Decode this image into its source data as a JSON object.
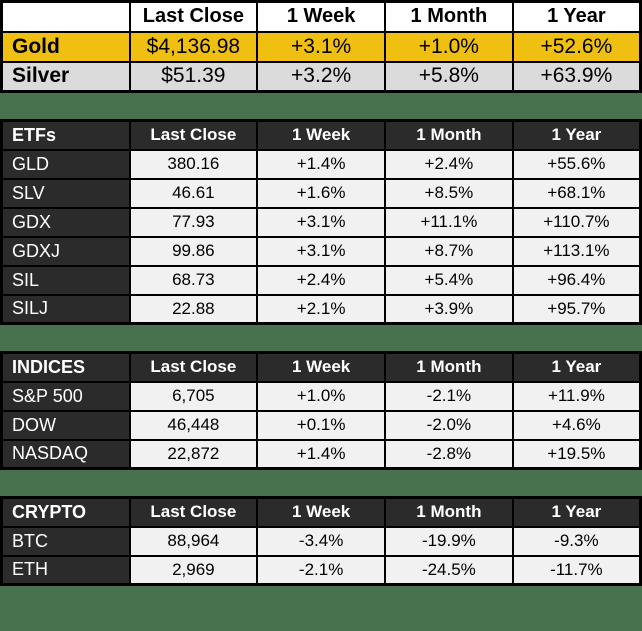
{
  "colors": {
    "page_bg": "#48714E",
    "dark": "#2B2B2B",
    "cell_bg": "#F1F1F1",
    "gold": "#EFBF12",
    "silver": "#DBDBDB",
    "border": "#000000",
    "header_bg": "#FFFFFF"
  },
  "metals_table": {
    "corner_label": "",
    "columns": [
      "Last Close",
      "1 Week",
      "1 Month",
      "1 Year"
    ],
    "rows": [
      {
        "label": "Gold",
        "bg_key": "gold",
        "values": [
          "$4,136.98",
          "+3.1%",
          "+1.0%",
          "+52.6%"
        ]
      },
      {
        "label": "Silver",
        "bg_key": "silver",
        "values": [
          "$51.39",
          "+3.2%",
          "+5.8%",
          "+63.9%"
        ]
      }
    ]
  },
  "sections": [
    {
      "title": "ETFs",
      "columns": [
        "Last Close",
        "1 Week",
        "1 Month",
        "1 Year"
      ],
      "rows": [
        {
          "label": "GLD",
          "values": [
            "380.16",
            "+1.4%",
            "+2.4%",
            "+55.6%"
          ]
        },
        {
          "label": "SLV",
          "values": [
            "46.61",
            "+1.6%",
            "+8.5%",
            "+68.1%"
          ]
        },
        {
          "label": "GDX",
          "values": [
            "77.93",
            "+3.1%",
            "+11.1%",
            "+110.7%"
          ]
        },
        {
          "label": "GDXJ",
          "values": [
            "99.86",
            "+3.1%",
            "+8.7%",
            "+113.1%"
          ]
        },
        {
          "label": "SIL",
          "values": [
            "68.73",
            "+2.4%",
            "+5.4%",
            "+96.4%"
          ]
        },
        {
          "label": "SILJ",
          "values": [
            "22.88",
            "+2.1%",
            "+3.9%",
            "+95.7%"
          ]
        }
      ]
    },
    {
      "title": "INDICES",
      "columns": [
        "Last Close",
        "1 Week",
        "1 Month",
        "1 Year"
      ],
      "rows": [
        {
          "label": "S&P 500",
          "values": [
            "6,705",
            "+1.0%",
            "-2.1%",
            "+11.9%"
          ]
        },
        {
          "label": "DOW",
          "values": [
            "46,448",
            "+0.1%",
            "-2.0%",
            "+4.6%"
          ]
        },
        {
          "label": "NASDAQ",
          "values": [
            "22,872",
            "+1.4%",
            "-2.8%",
            "+19.5%"
          ]
        }
      ]
    },
    {
      "title": "CRYPTO",
      "columns": [
        "Last Close",
        "1 Week",
        "1 Month",
        "1 Year"
      ],
      "rows": [
        {
          "label": "BTC",
          "values": [
            "88,964",
            "-3.4%",
            "-19.9%",
            "-9.3%"
          ]
        },
        {
          "label": "ETH",
          "values": [
            "2,969",
            "-2.1%",
            "-24.5%",
            "-11.7%"
          ]
        }
      ]
    }
  ],
  "chart_data": [
    {
      "type": "table",
      "title": "Metals",
      "columns": [
        "",
        "Last Close",
        "1 Week",
        "1 Month",
        "1 Year"
      ],
      "rows": [
        [
          "Gold",
          "$4,136.98",
          "+3.1%",
          "+1.0%",
          "+52.6%"
        ],
        [
          "Silver",
          "$51.39",
          "+3.2%",
          "+5.8%",
          "+63.9%"
        ]
      ]
    },
    {
      "type": "table",
      "title": "ETFs",
      "columns": [
        "ETFs",
        "Last Close",
        "1 Week",
        "1 Month",
        "1 Year"
      ],
      "rows": [
        [
          "GLD",
          "380.16",
          "+1.4%",
          "+2.4%",
          "+55.6%"
        ],
        [
          "SLV",
          "46.61",
          "+1.6%",
          "+8.5%",
          "+68.1%"
        ],
        [
          "GDX",
          "77.93",
          "+3.1%",
          "+11.1%",
          "+110.7%"
        ],
        [
          "GDXJ",
          "99.86",
          "+3.1%",
          "+8.7%",
          "+113.1%"
        ],
        [
          "SIL",
          "68.73",
          "+2.4%",
          "+5.4%",
          "+96.4%"
        ],
        [
          "SILJ",
          "22.88",
          "+2.1%",
          "+3.9%",
          "+95.7%"
        ]
      ]
    },
    {
      "type": "table",
      "title": "INDICES",
      "columns": [
        "INDICES",
        "Last Close",
        "1 Week",
        "1 Month",
        "1 Year"
      ],
      "rows": [
        [
          "S&P 500",
          "6,705",
          "+1.0%",
          "-2.1%",
          "+11.9%"
        ],
        [
          "DOW",
          "46,448",
          "+0.1%",
          "-2.0%",
          "+4.6%"
        ],
        [
          "NASDAQ",
          "22,872",
          "+1.4%",
          "-2.8%",
          "+19.5%"
        ]
      ]
    },
    {
      "type": "table",
      "title": "CRYPTO",
      "columns": [
        "CRYPTO",
        "Last Close",
        "1 Week",
        "1 Month",
        "1 Year"
      ],
      "rows": [
        [
          "BTC",
          "88,964",
          "-3.4%",
          "-19.9%",
          "-9.3%"
        ],
        [
          "ETH",
          "2,969",
          "-2.1%",
          "-24.5%",
          "-11.7%"
        ]
      ]
    }
  ]
}
